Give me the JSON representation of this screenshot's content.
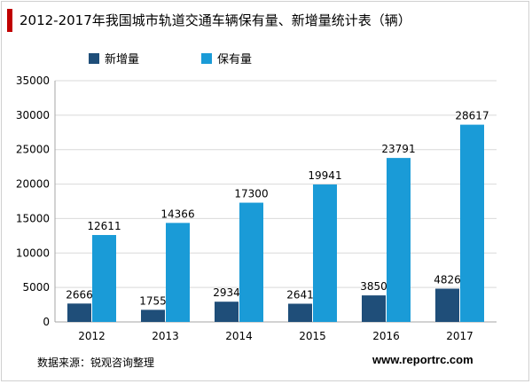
{
  "header": {
    "title": "2012-2017年我国城市轨道交通车辆保有量、新增量统计表（辆）"
  },
  "footer": {
    "source": "数据来源：锐观咨询整理",
    "website": "www.reportrc.com"
  },
  "colors": {
    "accent_bar": "#c00000",
    "series_new": "#1f4e79",
    "series_total": "#1a9bd7",
    "grid": "#d9d9d9"
  },
  "chart_data": {
    "type": "bar",
    "title": "",
    "xlabel": "",
    "ylabel": "",
    "categories": [
      "2012",
      "2013",
      "2014",
      "2015",
      "2016",
      "2017"
    ],
    "ylim": [
      0,
      35000
    ],
    "yticks": [
      0,
      5000,
      10000,
      15000,
      20000,
      25000,
      30000,
      35000
    ],
    "grid": true,
    "legend_position": "top",
    "series": [
      {
        "name": "新增量",
        "values": [
          2666,
          1755,
          2934,
          2641,
          3850,
          4826
        ]
      },
      {
        "name": "保有量",
        "values": [
          12611,
          14366,
          17300,
          19941,
          23791,
          28617
        ]
      }
    ]
  }
}
